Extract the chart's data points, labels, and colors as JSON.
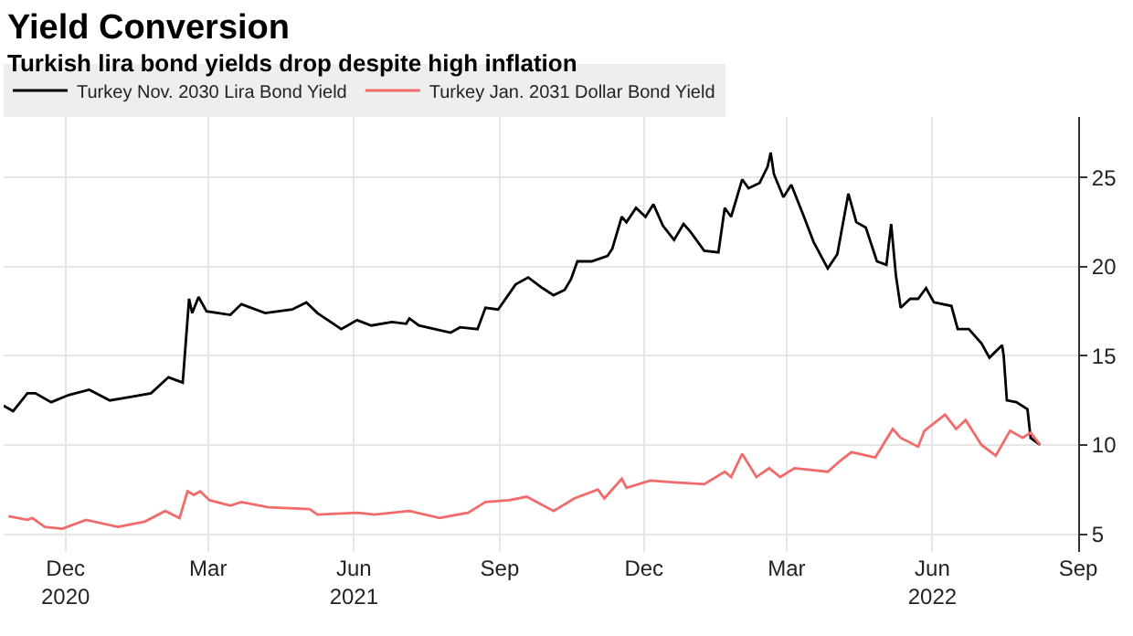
{
  "chart_data": {
    "type": "line",
    "title": "Yield Conversion",
    "subtitle": "Turkish lira bond yields drop despite high inflation",
    "series": [
      {
        "name": "Turkey Nov. 2030 Lira Bond Yield",
        "color": "#000000",
        "x": [
          "2020-10-23",
          "2020-10-29",
          "2020-11-07",
          "2020-11-12",
          "2020-11-22",
          "2020-12-03",
          "2020-12-16",
          "2020-12-29",
          "2021-01-11",
          "2021-01-24",
          "2021-02-04",
          "2021-02-13",
          "2021-02-17",
          "2021-02-19",
          "2021-02-23",
          "2021-02-28",
          "2021-03-15",
          "2021-03-22",
          "2021-04-06",
          "2021-04-23",
          "2021-05-02",
          "2021-05-09",
          "2021-05-24",
          "2021-06-03",
          "2021-06-12",
          "2021-06-25",
          "2021-07-04",
          "2021-07-06",
          "2021-07-12",
          "2021-08-01",
          "2021-08-07",
          "2021-08-18",
          "2021-08-23",
          "2021-08-31",
          "2021-09-11",
          "2021-09-19",
          "2021-09-28",
          "2021-10-05",
          "2021-10-12",
          "2021-10-16",
          "2021-10-20",
          "2021-10-29",
          "2021-11-08",
          "2021-11-11",
          "2021-11-17",
          "2021-11-20",
          "2021-11-26",
          "2021-12-02",
          "2021-12-07",
          "2021-12-13",
          "2021-12-20",
          "2021-12-26",
          "2021-12-30",
          "2022-01-08",
          "2022-01-17",
          "2022-01-21",
          "2022-01-25",
          "2022-02-01",
          "2022-02-05",
          "2022-02-12",
          "2022-02-17",
          "2022-02-19",
          "2022-02-21",
          "2022-02-27",
          "2022-03-04",
          "2022-03-12",
          "2022-03-18",
          "2022-03-27",
          "2022-04-02",
          "2022-04-09",
          "2022-04-14",
          "2022-04-20",
          "2022-04-27",
          "2022-05-03",
          "2022-05-06",
          "2022-05-09",
          "2022-05-12",
          "2022-05-18",
          "2022-05-23",
          "2022-05-28",
          "2022-06-02",
          "2022-06-13",
          "2022-06-17",
          "2022-06-24",
          "2022-07-02",
          "2022-07-07",
          "2022-07-15",
          "2022-07-16",
          "2022-07-18",
          "2022-07-24",
          "2022-07-31",
          "2022-08-02",
          "2022-08-08"
        ],
        "values": [
          12.2,
          11.9,
          12.9,
          12.9,
          12.4,
          12.8,
          13.1,
          12.5,
          12.7,
          12.9,
          13.8,
          13.5,
          18.2,
          17.4,
          18.3,
          17.5,
          17.3,
          17.9,
          17.4,
          17.6,
          18.0,
          17.4,
          16.5,
          17.0,
          16.7,
          16.9,
          16.8,
          17.1,
          16.7,
          16.3,
          16.6,
          16.5,
          17.7,
          17.6,
          19.0,
          19.4,
          18.8,
          18.4,
          18.7,
          19.3,
          20.3,
          20.3,
          20.6,
          21.0,
          22.8,
          22.5,
          23.3,
          22.8,
          23.5,
          22.3,
          21.5,
          22.4,
          22.0,
          20.9,
          20.8,
          23.3,
          22.8,
          24.9,
          24.4,
          24.7,
          25.6,
          26.4,
          25.2,
          23.9,
          24.6,
          22.8,
          21.4,
          19.9,
          20.7,
          24.1,
          22.5,
          22.2,
          20.3,
          20.1,
          22.4,
          19.5,
          17.7,
          18.2,
          18.2,
          18.8,
          18.0,
          17.8,
          16.5,
          16.5,
          15.7,
          14.9,
          15.6,
          15.0,
          12.5,
          12.4,
          12.0,
          10.4,
          10.0
        ]
      },
      {
        "name": "Turkey Jan. 2031 Dollar Bond Yield",
        "color": "#f26b6b",
        "x": [
          "2020-10-26",
          "2020-11-07",
          "2020-11-10",
          "2020-11-18",
          "2020-11-29",
          "2020-12-14",
          "2021-01-03",
          "2021-01-20",
          "2021-02-02",
          "2021-02-11",
          "2021-02-16",
          "2021-02-20",
          "2021-02-24",
          "2021-03-02",
          "2021-03-15",
          "2021-03-22",
          "2021-04-08",
          "2021-05-04",
          "2021-05-09",
          "2021-06-03",
          "2021-06-14",
          "2021-07-06",
          "2021-07-25",
          "2021-08-12",
          "2021-08-23",
          "2021-09-07",
          "2021-09-18",
          "2021-10-05",
          "2021-10-18",
          "2021-11-02",
          "2021-11-06",
          "2021-11-17",
          "2021-11-20",
          "2021-12-05",
          "2021-12-20",
          "2022-01-08",
          "2022-01-21",
          "2022-01-25",
          "2022-02-01",
          "2022-02-10",
          "2022-02-18",
          "2022-02-25",
          "2022-03-06",
          "2022-03-27",
          "2022-04-05",
          "2022-04-11",
          "2022-04-26",
          "2022-05-07",
          "2022-05-12",
          "2022-05-23",
          "2022-05-27",
          "2022-06-09",
          "2022-06-16",
          "2022-06-22",
          "2022-07-02",
          "2022-07-11",
          "2022-07-20",
          "2022-07-28",
          "2022-08-02",
          "2022-08-08"
        ],
        "values": [
          6.0,
          5.8,
          5.9,
          5.4,
          5.3,
          5.8,
          5.4,
          5.7,
          6.3,
          5.9,
          7.4,
          7.2,
          7.4,
          6.9,
          6.6,
          6.8,
          6.5,
          6.4,
          6.1,
          6.2,
          6.1,
          6.3,
          5.9,
          6.2,
          6.8,
          6.9,
          7.1,
          6.3,
          7.0,
          7.5,
          7.0,
          8.1,
          7.6,
          8.0,
          7.9,
          7.8,
          8.5,
          8.2,
          9.5,
          8.2,
          8.7,
          8.2,
          8.7,
          8.5,
          9.2,
          9.6,
          9.3,
          10.9,
          10.4,
          9.9,
          10.8,
          11.7,
          10.9,
          11.4,
          10.0,
          9.4,
          10.8,
          10.4,
          10.7,
          10.0
        ]
      }
    ],
    "xlim": [
      "2020-10-23",
      "2022-09-01"
    ],
    "xticks": [
      {
        "value": "2020-12-01",
        "label": "Dec\n2020"
      },
      {
        "value": "2021-03-01",
        "label": "Mar"
      },
      {
        "value": "2021-06-01",
        "label": "Jun\n2021"
      },
      {
        "value": "2021-09-01",
        "label": "Sep"
      },
      {
        "value": "2021-12-01",
        "label": "Dec"
      },
      {
        "value": "2022-03-01",
        "label": "Mar"
      },
      {
        "value": "2022-06-01",
        "label": "Jun\n2022"
      },
      {
        "value": "2022-09-01",
        "label": "Sep"
      }
    ],
    "ylim": [
      4,
      28.4
    ],
    "yticks": [
      5,
      10,
      15,
      20,
      25
    ],
    "grid": true,
    "legend": "top left",
    "marker": "none",
    "line_style": "solid"
  }
}
